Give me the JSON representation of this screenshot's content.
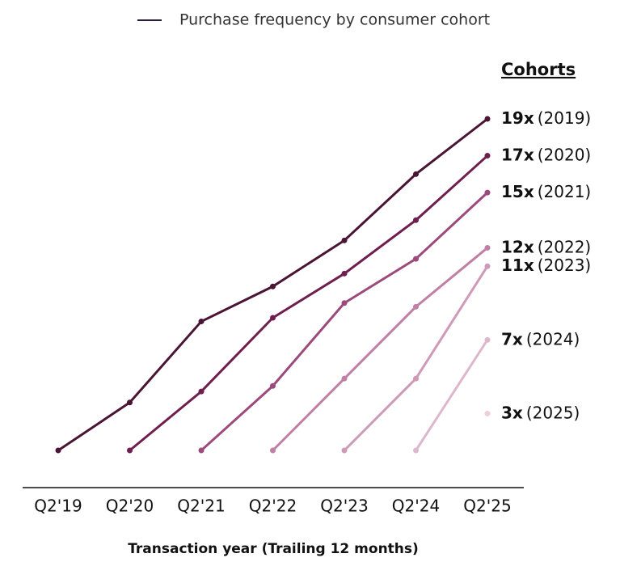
{
  "chart_data": {
    "type": "line",
    "legend_label": "Purchase frequency by consumer cohort",
    "legend_title": "Cohorts",
    "x_label": "Transaction year  (Trailing 12 months)",
    "categories": [
      "Q2'19",
      "Q2'20",
      "Q2'21",
      "Q2'22",
      "Q2'23",
      "Q2'24",
      "Q2'25"
    ],
    "ylim": [
      1,
      19
    ],
    "series": [
      {
        "name": "(2019)",
        "color": "#4a1535",
        "values": [
          1,
          3.6,
          8.0,
          9.9,
          12.4,
          16.0,
          19
        ],
        "value_labels": [
          null,
          null,
          null,
          null,
          null,
          null,
          "19x"
        ]
      },
      {
        "name": "(2020)",
        "color": "#6e1f4e",
        "values": [
          null,
          1,
          4.2,
          8.2,
          10.6,
          13.5,
          17
        ],
        "value_labels": [
          null,
          null,
          null,
          null,
          null,
          null,
          "17x"
        ]
      },
      {
        "name": "(2021)",
        "color": "#9c4a7c",
        "values": [
          null,
          null,
          1,
          4.5,
          9.0,
          11.4,
          15
        ],
        "value_labels": [
          null,
          null,
          null,
          null,
          null,
          null,
          "15x"
        ]
      },
      {
        "name": "(2022)",
        "color": "#c07fa5",
        "values": [
          null,
          null,
          null,
          1,
          4.9,
          8.8,
          12
        ],
        "value_labels": [
          null,
          null,
          null,
          null,
          null,
          null,
          "12x"
        ]
      },
      {
        "name": "(2023)",
        "color": "#cf9ab8",
        "values": [
          null,
          null,
          null,
          null,
          1,
          4.9,
          11
        ],
        "value_labels": [
          null,
          null,
          null,
          null,
          null,
          null,
          "11x"
        ]
      },
      {
        "name": "(2024)",
        "color": "#ddb8cc",
        "values": [
          null,
          null,
          null,
          null,
          null,
          1,
          7
        ],
        "value_labels": [
          null,
          null,
          null,
          null,
          null,
          null,
          "7x"
        ]
      },
      {
        "name": "(2025)",
        "color": "#f0cddb",
        "values": [
          null,
          null,
          null,
          null,
          null,
          null,
          3
        ],
        "value_labels": [
          null,
          null,
          null,
          null,
          null,
          null,
          "3x"
        ]
      }
    ]
  }
}
